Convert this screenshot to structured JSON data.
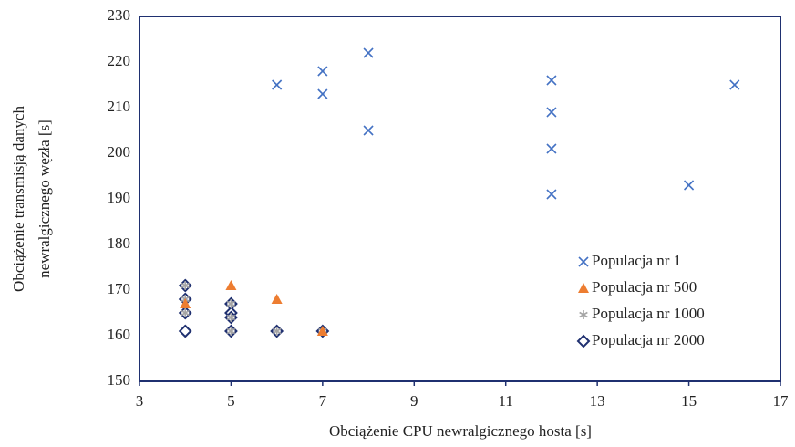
{
  "chart_data": {
    "type": "scatter",
    "xlabel": "Obciążenie CPU newralgicznego hosta [s]",
    "ylabel": [
      "Obciążenie transmisją danych",
      "newralgicznego węzła [s]"
    ],
    "xlim": [
      3,
      17
    ],
    "xticks": [
      3,
      5,
      7,
      9,
      11,
      13,
      15,
      17
    ],
    "ylim": [
      150,
      230
    ],
    "yticks": [
      150,
      160,
      170,
      180,
      190,
      200,
      210,
      220,
      230
    ],
    "grid": false,
    "legend": "right",
    "series": [
      {
        "name": "Populacja nr 1",
        "marker": "x",
        "color": "#4472c4",
        "x": [
          6,
          7,
          7,
          8,
          8,
          12,
          12,
          12,
          12,
          15,
          16
        ],
        "values": [
          215,
          218,
          213,
          222,
          205,
          216,
          209,
          201,
          191,
          193,
          215
        ]
      },
      {
        "name": "Populacja nr 500",
        "marker": "triangle",
        "color": "#ed7d31",
        "x": [
          4,
          5,
          6,
          7
        ],
        "values": [
          167,
          171,
          168,
          161
        ]
      },
      {
        "name": "Populacja nr 1000",
        "marker": "asterisk",
        "color": "#a5a5a5",
        "x": [
          4,
          4,
          4,
          5,
          5,
          5,
          6,
          7
        ],
        "values": [
          171,
          168,
          165,
          167,
          164,
          161,
          161,
          161
        ]
      },
      {
        "name": "Populacja nr 2000",
        "marker": "diamond",
        "color": "#1f3070",
        "x": [
          4,
          4,
          4,
          4,
          5,
          5,
          5,
          5,
          6,
          7
        ],
        "values": [
          171,
          168,
          165,
          161,
          167,
          165,
          164,
          161,
          161,
          161
        ]
      }
    ]
  }
}
